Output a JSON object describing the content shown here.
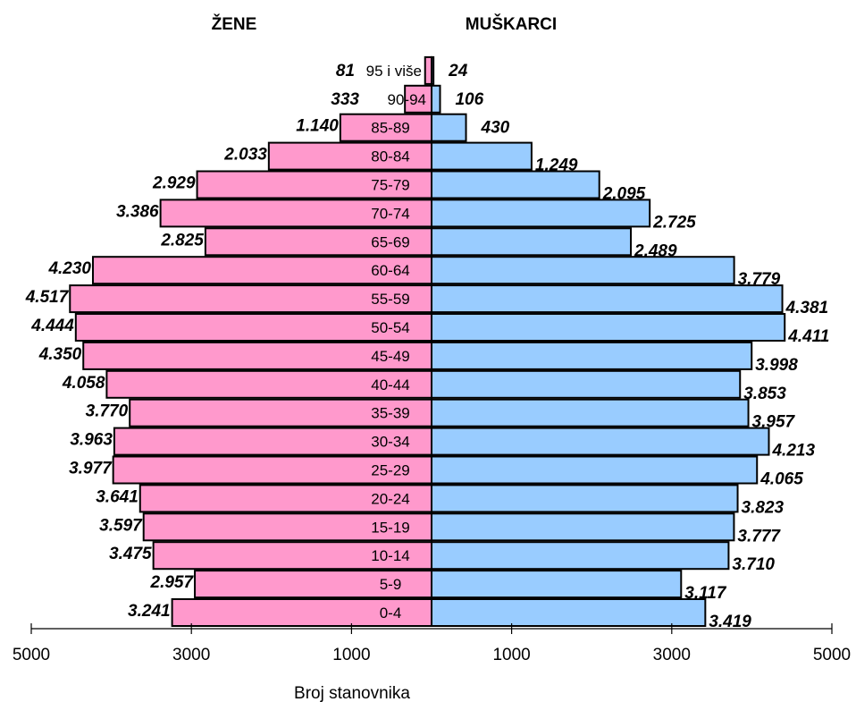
{
  "chart_data": {
    "type": "bar",
    "orientation": "horizontal-population-pyramid",
    "left_title": "ŽENE",
    "right_title": "MUŠKARCI",
    "xlabel": "Broj stanovnika",
    "xlim": [
      -5000,
      5000
    ],
    "tick_labels": [
      "5000",
      "3000",
      "1000",
      "1000",
      "3000",
      "5000"
    ],
    "tick_values": [
      -5000,
      -3000,
      -1000,
      1000,
      3000,
      5000
    ],
    "categories": [
      "0-4",
      "5-9",
      "10-14",
      "15-19",
      "20-24",
      "25-29",
      "30-34",
      "35-39",
      "40-44",
      "45-49",
      "50-54",
      "55-59",
      "60-64",
      "65-69",
      "70-74",
      "75-79",
      "80-84",
      "85-89",
      "90-94",
      "95 i više"
    ],
    "series": [
      {
        "name": "ŽENE",
        "color": "#ff99cc",
        "values": [
          3241,
          2957,
          3475,
          3597,
          3641,
          3977,
          3963,
          3770,
          4058,
          4350,
          4444,
          4517,
          4230,
          2825,
          3386,
          2929,
          2033,
          1140,
          333,
          81
        ],
        "labels": [
          "3.241",
          "2.957",
          "3.475",
          "3.597",
          "3.641",
          "3.977",
          "3.963",
          "3.770",
          "4.058",
          "4.350",
          "4.444",
          "4.517",
          "4.230",
          "2.825",
          "3.386",
          "2.929",
          "2.033",
          "1.140",
          "333",
          "81"
        ]
      },
      {
        "name": "MUŠKARCI",
        "color": "#99ccff",
        "values": [
          3419,
          3117,
          3710,
          3777,
          3823,
          4065,
          4213,
          3957,
          3853,
          3998,
          4411,
          4381,
          3779,
          2489,
          2725,
          2095,
          1249,
          430,
          106,
          24
        ],
        "labels": [
          "3.419",
          "3.117",
          "3.710",
          "3.777",
          "3.823",
          "4.065",
          "4.213",
          "3.957",
          "3.853",
          "3.998",
          "4.411",
          "4.381",
          "3.779",
          "2.489",
          "2.725",
          "2.095",
          "1.249",
          "430",
          "106",
          "24"
        ]
      }
    ]
  }
}
